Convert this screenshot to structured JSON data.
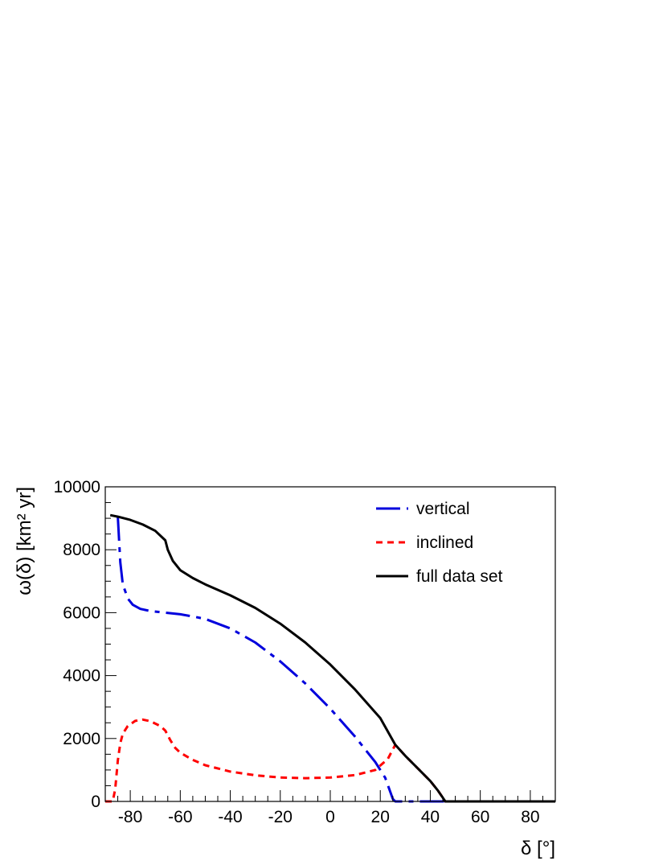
{
  "chart_data": {
    "type": "line",
    "xlabel": "δ [°]",
    "ylabel": "ω(δ)  [km² yr]",
    "xlim": [
      -90,
      90
    ],
    "ylim": [
      0,
      10000
    ],
    "xticks": [
      -80,
      -60,
      -40,
      -20,
      0,
      20,
      40,
      60,
      80
    ],
    "yticks": [
      0,
      2000,
      4000,
      6000,
      8000,
      10000
    ],
    "xtick_labels": [
      "-80",
      "-60",
      "-40",
      "-20",
      "0",
      "20",
      "40",
      "60",
      "80"
    ],
    "ytick_labels": [
      "0",
      "2000",
      "4000",
      "6000",
      "8000",
      "10000"
    ],
    "grid": false,
    "legend_position": "top-right",
    "series": [
      {
        "name": "vertical",
        "color": "#0000dd",
        "style": "dash-dot",
        "x": [
          -85,
          -84,
          -83,
          -81,
          -79,
          -76,
          -72,
          -66,
          -60,
          -55,
          -50,
          -40,
          -30,
          -20,
          -10,
          0,
          10,
          18,
          22,
          24,
          25,
          26,
          90
        ],
        "y": [
          9050,
          7600,
          6900,
          6450,
          6250,
          6120,
          6050,
          6000,
          5950,
          5880,
          5800,
          5500,
          5050,
          4450,
          3750,
          2950,
          2050,
          1250,
          750,
          300,
          80,
          0,
          0
        ]
      },
      {
        "name": "inclined",
        "color": "#ff0000",
        "style": "dotted",
        "x": [
          -90,
          -87,
          -86,
          -85,
          -84,
          -83,
          -81,
          -78,
          -75,
          -72,
          -68,
          -66,
          -64,
          -62,
          -60,
          -55,
          -50,
          -40,
          -30,
          -20,
          -10,
          0,
          10,
          18,
          23,
          26,
          30,
          35,
          40,
          43,
          45,
          46,
          90
        ],
        "y": [
          0,
          0,
          400,
          1300,
          1850,
          2150,
          2400,
          2560,
          2600,
          2550,
          2400,
          2250,
          1950,
          1700,
          1550,
          1320,
          1150,
          950,
          830,
          760,
          740,
          760,
          840,
          1000,
          1350,
          1800,
          1450,
          1050,
          650,
          350,
          120,
          0,
          0
        ]
      },
      {
        "name": "full data set",
        "color": "#000000",
        "style": "solid",
        "x": [
          -88,
          -85,
          -80,
          -75,
          -70,
          -66,
          -65,
          -63,
          -60,
          -55,
          -50,
          -40,
          -30,
          -20,
          -10,
          0,
          10,
          20,
          26,
          30,
          35,
          40,
          43,
          45,
          46,
          90
        ],
        "y": [
          9100,
          9050,
          8950,
          8800,
          8600,
          8300,
          8000,
          7650,
          7350,
          7100,
          6900,
          6550,
          6150,
          5650,
          5050,
          4350,
          3550,
          2650,
          1800,
          1450,
          1050,
          650,
          350,
          120,
          0,
          0
        ]
      }
    ]
  }
}
